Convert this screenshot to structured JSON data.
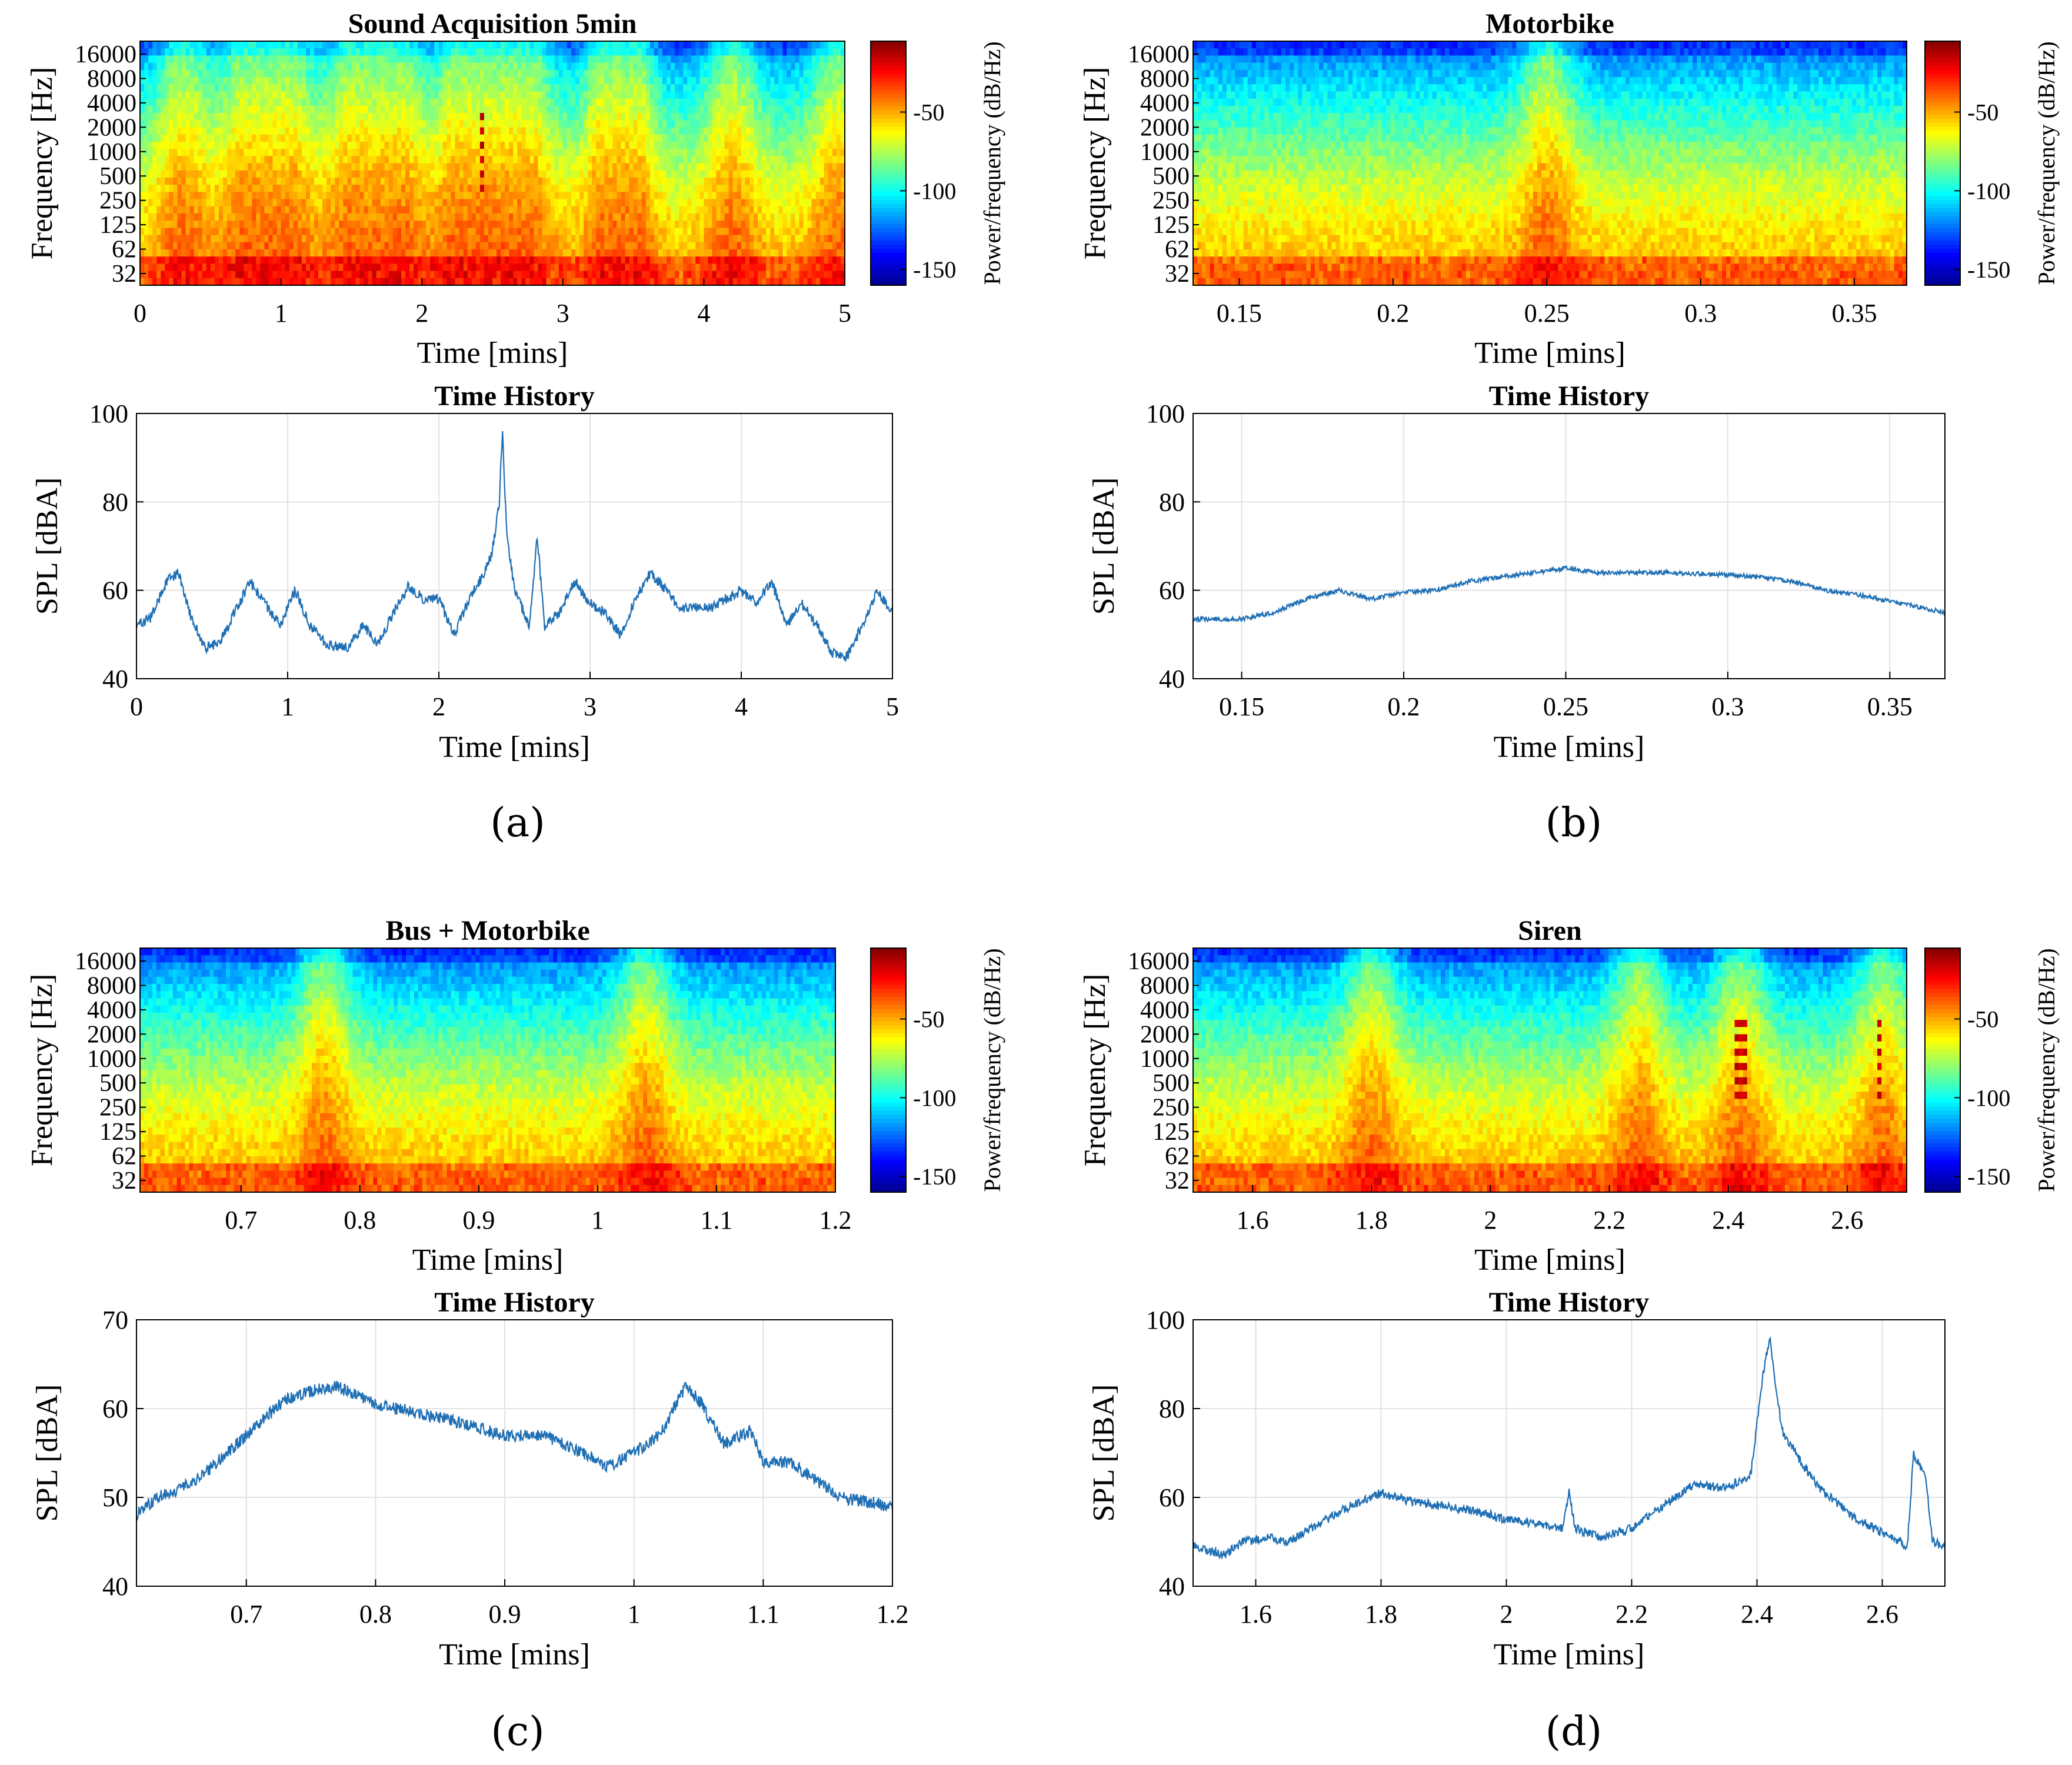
{
  "figure": {
    "panel_labels": [
      "(a)",
      "(b)",
      "(c)",
      "(d)"
    ]
  },
  "colors": {
    "line": "#1f6fb4",
    "grid": "#e2e2e2",
    "axis": "#000000",
    "colormap": [
      "#00008f",
      "#0000ff",
      "#0080ff",
      "#00ffff",
      "#80ff80",
      "#ffff00",
      "#ff8000",
      "#ff0000",
      "#800000"
    ]
  },
  "chart_data": [
    {
      "panel": "a",
      "type": "heatmap",
      "kind": "spectrogram",
      "title": "Sound Acquisition 5min",
      "xlabel": "Time [mins]",
      "ylabel": "Frequency [Hz]",
      "xlim": [
        0,
        5
      ],
      "xticks": [
        0,
        1,
        2,
        3,
        4,
        5
      ],
      "xtick_labels": [
        "0",
        "1",
        "2",
        "3",
        "4",
        "5"
      ],
      "ytick_labels": [
        "32",
        "62",
        "125",
        "250",
        "500",
        "1000",
        "2000",
        "4000",
        "8000",
        "16000"
      ],
      "colorbar": {
        "label": "Power/frequency (dB/Hz)",
        "ticks": [
          -50,
          -100,
          -150
        ],
        "tick_labels": [
          "-50",
          "-100",
          "-150"
        ],
        "range": [
          -160,
          -5
        ]
      },
      "events": [
        0.3,
        0.75,
        1.05,
        1.5,
        1.85,
        2.3,
        2.42,
        2.75,
        3.35,
        3.45,
        4.2,
        4.95
      ],
      "siren": [
        2.42,
        2.44
      ]
    },
    {
      "panel": "a",
      "type": "line",
      "title": "Time History",
      "xlabel": "Time [mins]",
      "ylabel": "SPL [dBA]",
      "xlim": [
        0,
        5
      ],
      "ylim": [
        40,
        100
      ],
      "xticks": [
        0,
        1,
        2,
        3,
        4,
        5
      ],
      "xtick_labels": [
        "0",
        "1",
        "2",
        "3",
        "4",
        "5"
      ],
      "yticks": [
        40,
        60,
        80,
        100
      ],
      "ytick_labels": [
        "40",
        "60",
        "80",
        "100"
      ],
      "grid": true,
      "noise": 1.2,
      "x": [
        0,
        0.1,
        0.2,
        0.28,
        0.35,
        0.45,
        0.55,
        0.65,
        0.75,
        0.85,
        0.95,
        1.05,
        1.15,
        1.25,
        1.4,
        1.5,
        1.6,
        1.7,
        1.8,
        1.9,
        2.0,
        2.1,
        2.2,
        2.3,
        2.35,
        2.4,
        2.42,
        2.45,
        2.5,
        2.6,
        2.65,
        2.7,
        2.8,
        2.9,
        3.0,
        3.1,
        3.2,
        3.3,
        3.4,
        3.5,
        3.6,
        3.8,
        3.9,
        4.0,
        4.1,
        4.2,
        4.3,
        4.4,
        4.5,
        4.6,
        4.7,
        4.8,
        4.9,
        5.0
      ],
      "y": [
        52,
        54,
        62,
        64,
        55,
        47,
        48,
        55,
        62,
        57,
        52,
        60,
        52,
        48,
        47,
        52,
        48,
        55,
        61,
        58,
        58,
        50,
        58,
        64,
        68,
        80,
        96,
        72,
        60,
        52,
        72,
        52,
        55,
        62,
        57,
        55,
        50,
        58,
        64,
        60,
        56,
        56,
        58,
        60,
        57,
        62,
        52,
        57,
        52,
        46,
        45,
        52,
        60,
        55
      ]
    },
    {
      "panel": "b",
      "type": "heatmap",
      "kind": "spectrogram",
      "title": "Motorbike",
      "xlabel": "Time [mins]",
      "ylabel": "Frequency [Hz]",
      "xlim": [
        0.135,
        0.367
      ],
      "xticks": [
        0.15,
        0.2,
        0.25,
        0.3,
        0.35
      ],
      "xtick_labels": [
        "0.15",
        "0.2",
        "0.25",
        "0.3",
        "0.35"
      ],
      "ytick_labels": [
        "32",
        "62",
        "125",
        "250",
        "500",
        "1000",
        "2000",
        "4000",
        "8000",
        "16000"
      ],
      "colorbar": {
        "label": "Power/frequency (dB/Hz)",
        "ticks": [
          -50,
          -100,
          -150
        ],
        "tick_labels": [
          "-50",
          "-100",
          "-150"
        ],
        "range": [
          -160,
          -5
        ]
      },
      "events": [
        0.25
      ],
      "siren": []
    },
    {
      "panel": "b",
      "type": "line",
      "title": "Time History",
      "xlabel": "Time [mins]",
      "ylabel": "SPL [dBA]",
      "xlim": [
        0.135,
        0.367
      ],
      "ylim": [
        40,
        100
      ],
      "xticks": [
        0.15,
        0.2,
        0.25,
        0.3,
        0.35
      ],
      "xtick_labels": [
        "0.15",
        "0.2",
        "0.25",
        "0.3",
        "0.35"
      ],
      "yticks": [
        40,
        60,
        80,
        100
      ],
      "ytick_labels": [
        "40",
        "60",
        "80",
        "100"
      ],
      "grid": true,
      "noise": 0.5,
      "x": [
        0.135,
        0.15,
        0.16,
        0.17,
        0.18,
        0.19,
        0.2,
        0.21,
        0.22,
        0.24,
        0.25,
        0.26,
        0.28,
        0.3,
        0.31,
        0.32,
        0.33,
        0.34,
        0.35,
        0.367
      ],
      "y": [
        53.5,
        53.5,
        55,
        58,
        60,
        58,
        59.5,
        60,
        62,
        64,
        65,
        64,
        64,
        63.5,
        63,
        62,
        60,
        59,
        57.5,
        55
      ]
    },
    {
      "panel": "c",
      "type": "heatmap",
      "kind": "spectrogram",
      "title": "Bus + Motorbike",
      "xlabel": "Time [mins]",
      "ylabel": "Frequency [Hz]",
      "xlim": [
        0.615,
        1.2
      ],
      "xticks": [
        0.7,
        0.8,
        0.9,
        1.0,
        1.1,
        1.2
      ],
      "xtick_labels": [
        "0.7",
        "0.8",
        "0.9",
        "1",
        "1.1",
        "1.2"
      ],
      "ytick_labels": [
        "32",
        "62",
        "125",
        "250",
        "500",
        "1000",
        "2000",
        "4000",
        "8000",
        "16000"
      ],
      "colorbar": {
        "label": "Power/frequency (dB/Hz)",
        "ticks": [
          -50,
          -100,
          -150
        ],
        "tick_labels": [
          "-50",
          "-100",
          "-150"
        ],
        "range": [
          -160,
          -5
        ]
      },
      "events": [
        0.77,
        1.04
      ],
      "siren": []
    },
    {
      "panel": "c",
      "type": "line",
      "title": "Time History",
      "xlabel": "Time [mins]",
      "ylabel": "SPL [dBA]",
      "xlim": [
        0.615,
        1.2
      ],
      "ylim": [
        40,
        70
      ],
      "xticks": [
        0.7,
        0.8,
        0.9,
        1.0,
        1.1,
        1.2
      ],
      "xtick_labels": [
        "0.7",
        "0.8",
        "0.9",
        "1",
        "1.1",
        "1.2"
      ],
      "yticks": [
        40,
        50,
        60,
        70
      ],
      "ytick_labels": [
        "40",
        "50",
        "60",
        "70"
      ],
      "grid": true,
      "noise": 0.7,
      "x": [
        0.615,
        0.63,
        0.65,
        0.67,
        0.7,
        0.73,
        0.75,
        0.77,
        0.8,
        0.85,
        0.9,
        0.93,
        0.96,
        0.98,
        1.0,
        1.02,
        1.04,
        1.05,
        1.07,
        1.09,
        1.1,
        1.12,
        1.14,
        1.16,
        1.2
      ],
      "y": [
        48,
        50,
        51,
        53,
        57,
        61,
        62,
        62.5,
        60.5,
        59,
        57,
        57,
        55,
        53.5,
        55,
        57,
        62.5,
        61,
        56,
        57.5,
        54,
        54,
        52,
        50,
        49
      ]
    },
    {
      "panel": "d",
      "type": "heatmap",
      "kind": "spectrogram",
      "title": "Siren",
      "xlabel": "Time [mins]",
      "ylabel": "Frequency [Hz]",
      "xlim": [
        1.5,
        2.7
      ],
      "xticks": [
        1.6,
        1.8,
        2.0,
        2.2,
        2.4,
        2.6
      ],
      "xtick_labels": [
        "1.6",
        "1.8",
        "2",
        "2.2",
        "2.4",
        "2.6"
      ],
      "ytick_labels": [
        "32",
        "62",
        "125",
        "250",
        "500",
        "1000",
        "2000",
        "4000",
        "8000",
        "16000"
      ],
      "colorbar": {
        "label": "Power/frequency (dB/Hz)",
        "ticks": [
          -50,
          -100,
          -150
        ],
        "tick_labels": [
          "-50",
          "-100",
          "-150"
        ],
        "range": [
          -160,
          -5
        ]
      },
      "events": [
        1.8,
        2.25,
        2.42,
        2.66
      ],
      "siren": [
        2.41,
        2.43,
        2.65,
        2.66
      ]
    },
    {
      "panel": "d",
      "type": "line",
      "title": "Time History",
      "xlabel": "Time [mins]",
      "ylabel": "SPL [dBA]",
      "xlim": [
        1.5,
        2.7
      ],
      "ylim": [
        40,
        100
      ],
      "xticks": [
        1.6,
        1.8,
        2.0,
        2.2,
        2.4,
        2.6
      ],
      "xtick_labels": [
        "1.6",
        "1.8",
        "2",
        "2.2",
        "2.4",
        "2.6"
      ],
      "yticks": [
        40,
        60,
        80,
        100
      ],
      "ytick_labels": [
        "40",
        "60",
        "80",
        "100"
      ],
      "grid": true,
      "noise": 1.0,
      "x": [
        1.5,
        1.55,
        1.58,
        1.62,
        1.65,
        1.7,
        1.75,
        1.8,
        1.85,
        1.9,
        1.95,
        2.0,
        2.05,
        2.09,
        2.1,
        2.11,
        2.15,
        2.2,
        2.25,
        2.3,
        2.35,
        2.39,
        2.41,
        2.42,
        2.44,
        2.47,
        2.5,
        2.55,
        2.6,
        2.64,
        2.65,
        2.67,
        2.68,
        2.7
      ],
      "y": [
        49,
        47,
        50,
        51,
        50,
        54,
        58,
        61,
        59,
        58,
        57,
        55,
        54,
        53,
        61,
        53,
        51,
        53,
        58,
        63,
        62,
        65,
        88,
        96,
        75,
        68,
        62,
        56,
        52,
        49,
        70,
        64,
        50,
        49
      ]
    }
  ]
}
